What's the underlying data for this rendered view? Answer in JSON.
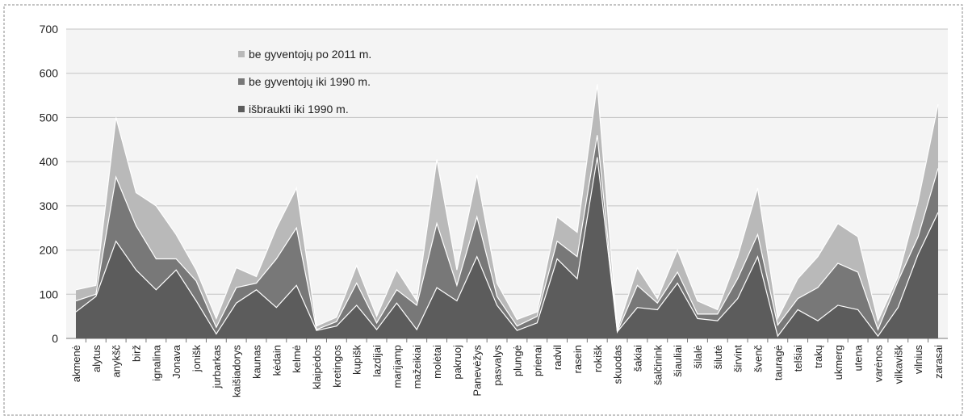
{
  "chart_data": {
    "type": "area",
    "stacked": true,
    "title": "",
    "xlabel": "",
    "ylabel": "",
    "ylim": [
      0,
      700
    ],
    "yticks": [
      0,
      100,
      200,
      300,
      400,
      500,
      600,
      700
    ],
    "grid": true,
    "legend_position": "top-left inside plot",
    "categories": [
      "akmenė",
      "alytus",
      "anykšč",
      "birž",
      "ignalina",
      "Jonava",
      "jonišk",
      "jurbarkas",
      "kaišiadorys",
      "kaunas",
      "kėdain",
      "kelmė",
      "klaipėdos",
      "kretingos",
      "kupišk",
      "lazdijai",
      "marijamp",
      "mažeikiai",
      "molėtai",
      "pakruoj",
      "Panevėžys",
      "pasvalys",
      "plungė",
      "prienai",
      "radvil",
      "rasein",
      "rokišk",
      "skuodas",
      "šakiai",
      "šalčinink",
      "šiauliai",
      "šilalė",
      "šilutė",
      "širvint",
      "švenč",
      "tauragė",
      "telšiai",
      "trakų",
      "ukmerg",
      "utena",
      "varėnos",
      "vilkavišk",
      "vilnius",
      "zarasai"
    ],
    "series": [
      {
        "name": "išbraukti iki 1990 m.",
        "color": "#5c5c5c",
        "values": [
          60,
          95,
          220,
          155,
          110,
          155,
          85,
          10,
          80,
          110,
          70,
          120,
          18,
          28,
          75,
          20,
          80,
          20,
          115,
          85,
          185,
          75,
          18,
          35,
          180,
          135,
          410,
          15,
          70,
          65,
          125,
          45,
          40,
          90,
          185,
          5,
          65,
          40,
          75,
          65,
          5,
          70,
          190,
          285
        ]
      },
      {
        "name": "be gyventojų iki 1990 m.",
        "color": "#787878",
        "values": [
          25,
          5,
          145,
          100,
          70,
          25,
          45,
          15,
          35,
          15,
          110,
          130,
          2,
          10,
          50,
          15,
          30,
          55,
          145,
          35,
          90,
          20,
          10,
          15,
          40,
          50,
          50,
          0,
          50,
          15,
          25,
          10,
          15,
          45,
          50,
          25,
          25,
          75,
          95,
          85,
          15,
          60,
          40,
          100
        ]
      },
      {
        "name": "be gyventojų po 2011 m.",
        "color": "#b9b9b9",
        "values": [
          25,
          20,
          135,
          75,
          120,
          55,
          25,
          20,
          45,
          15,
          70,
          90,
          8,
          10,
          40,
          15,
          45,
          10,
          145,
          35,
          95,
          30,
          15,
          10,
          55,
          55,
          115,
          5,
          40,
          10,
          50,
          30,
          10,
          50,
          105,
          15,
          45,
          70,
          90,
          80,
          20,
          10,
          80,
          145
        ]
      }
    ]
  }
}
